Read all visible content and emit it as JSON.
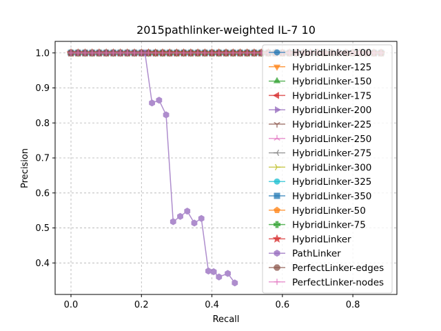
{
  "chart_data": {
    "type": "line",
    "title": "2015pathlinker-weighted IL-7 10",
    "xlabel": "Recall",
    "ylabel": "Precision",
    "xlim": [
      -0.045,
      0.925
    ],
    "ylim": [
      0.31,
      1.033
    ],
    "xticks": [
      0.0,
      0.2,
      0.4,
      0.6,
      0.8
    ],
    "xtick_labels": [
      "0.0",
      "0.2",
      "0.4",
      "0.6",
      "0.8"
    ],
    "yticks": [
      0.4,
      0.5,
      0.6,
      0.7,
      0.8,
      0.9,
      1.0
    ],
    "ytick_labels": [
      "0.4",
      "0.5",
      "0.6",
      "0.7",
      "0.8",
      "0.9",
      "1.0"
    ],
    "grid": true,
    "legend_position": "upper-right",
    "series": [
      {
        "name": "HybridLinker-100",
        "color": "#1f77b4",
        "marker": "circle",
        "x_start": 0.0,
        "x_end": 0.88,
        "x_step": 0.02,
        "y_constant": 1.0
      },
      {
        "name": "HybridLinker-125",
        "color": "#ff7f0e",
        "marker": "triangle-down",
        "x_start": 0.0,
        "x_end": 0.88,
        "x_step": 0.02,
        "y_constant": 1.0
      },
      {
        "name": "HybridLinker-150",
        "color": "#2ca02c",
        "marker": "triangle-up",
        "x_start": 0.0,
        "x_end": 0.88,
        "x_step": 0.02,
        "y_constant": 1.0
      },
      {
        "name": "HybridLinker-175",
        "color": "#d62728",
        "marker": "triangle-left",
        "x_start": 0.0,
        "x_end": 0.88,
        "x_step": 0.02,
        "y_constant": 1.0
      },
      {
        "name": "HybridLinker-200",
        "color": "#9467bd",
        "marker": "triangle-right",
        "x_start": 0.0,
        "x_end": 0.88,
        "x_step": 0.02,
        "y_constant": 1.0
      },
      {
        "name": "HybridLinker-225",
        "color": "#8c564b",
        "marker": "tri-down",
        "x_start": 0.0,
        "x_end": 0.88,
        "x_step": 0.02,
        "y_constant": 1.0
      },
      {
        "name": "HybridLinker-250",
        "color": "#e377c2",
        "marker": "tri-up",
        "x_start": 0.0,
        "x_end": 0.88,
        "x_step": 0.02,
        "y_constant": 1.0
      },
      {
        "name": "HybridLinker-275",
        "color": "#7f7f7f",
        "marker": "tri-left",
        "x_start": 0.0,
        "x_end": 0.88,
        "x_step": 0.02,
        "y_constant": 1.0
      },
      {
        "name": "HybridLinker-300",
        "color": "#bcbd22",
        "marker": "tri-right",
        "x_start": 0.0,
        "x_end": 0.88,
        "x_step": 0.02,
        "y_constant": 1.0
      },
      {
        "name": "HybridLinker-325",
        "color": "#17becf",
        "marker": "circle",
        "x_start": 0.0,
        "x_end": 0.88,
        "x_step": 0.02,
        "y_constant": 1.0
      },
      {
        "name": "HybridLinker-350",
        "color": "#1f77b4",
        "marker": "square",
        "x_start": 0.0,
        "x_end": 0.88,
        "x_step": 0.02,
        "y_constant": 1.0
      },
      {
        "name": "HybridLinker-50",
        "color": "#ff7f0e",
        "marker": "pentagon",
        "x_start": 0.0,
        "x_end": 0.88,
        "x_step": 0.02,
        "y_constant": 1.0
      },
      {
        "name": "HybridLinker-75",
        "color": "#2ca02c",
        "marker": "plus-filled",
        "x_start": 0.0,
        "x_end": 0.88,
        "x_step": 0.02,
        "y_constant": 1.0
      },
      {
        "name": "HybridLinker",
        "color": "#d62728",
        "marker": "star",
        "x_start": 0.0,
        "x_end": 0.88,
        "x_step": 0.02,
        "y_constant": 1.0
      },
      {
        "name": "PathLinker",
        "color": "#9467bd",
        "marker": "hexagon",
        "x": [
          0.0,
          0.02,
          0.04,
          0.06,
          0.08,
          0.1,
          0.12,
          0.14,
          0.16,
          0.18,
          0.2,
          0.21,
          0.23,
          0.25,
          0.27,
          0.29,
          0.31,
          0.33,
          0.35,
          0.37,
          0.39,
          0.405,
          0.42,
          0.445,
          0.465
        ],
        "y": [
          1.0,
          1.0,
          1.0,
          1.0,
          1.0,
          1.0,
          1.0,
          1.0,
          1.0,
          1.0,
          1.0,
          1.0,
          0.857,
          0.865,
          0.823,
          0.518,
          0.533,
          0.548,
          0.514,
          0.527,
          0.377,
          0.375,
          0.36,
          0.37,
          0.343
        ]
      },
      {
        "name": "PerfectLinker-edges",
        "color": "#8c564b",
        "marker": "octagon",
        "x_start": 0.0,
        "x_end": 0.88,
        "x_step": 0.02,
        "y_constant": 1.0
      },
      {
        "name": "PerfectLinker-nodes",
        "color": "#e377c2",
        "marker": "plus",
        "x_start": 0.0,
        "x_end": 0.88,
        "x_step": 0.02,
        "y_constant": 1.0
      }
    ]
  }
}
